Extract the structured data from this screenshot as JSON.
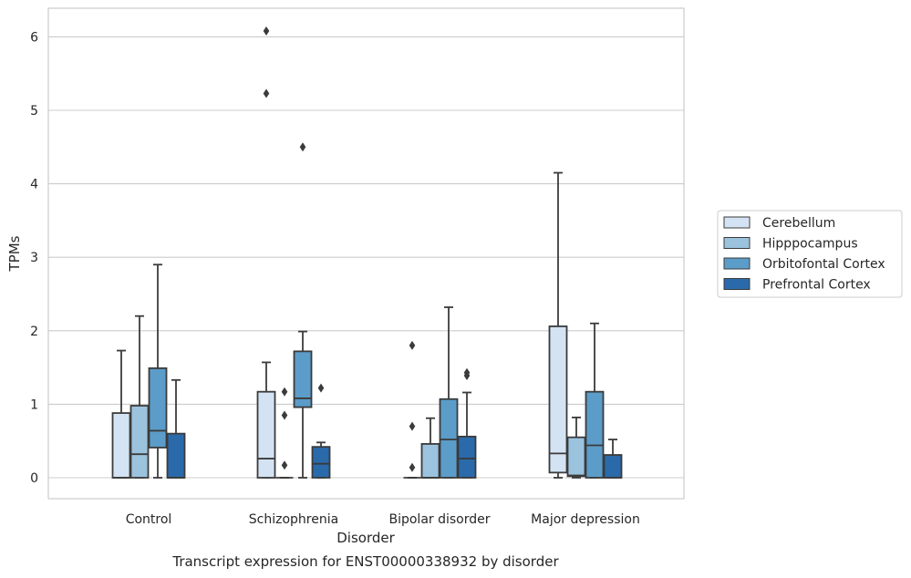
{
  "chart_data": {
    "type": "boxplot",
    "title": "",
    "caption": "Transcript expression for ENST00000338932 by disorder",
    "xlabel": "Disorder",
    "ylabel": "TPMs",
    "ylim": [
      -0.3,
      6.4
    ],
    "yticks": [
      0,
      1,
      2,
      3,
      4,
      5,
      6
    ],
    "grid": "horizontal",
    "legend_position": "right",
    "categories": [
      "Control",
      "Schizophrenia",
      "Bipolar disorder",
      "Major depression"
    ],
    "series": [
      {
        "name": "Cerebellum",
        "color": "#d4e3f3",
        "boxes": [
          {
            "whislo": 0,
            "q1": 0,
            "med": 0,
            "q3": 0.88,
            "whishi": 1.73,
            "fliers": []
          },
          {
            "whislo": 0,
            "q1": 0,
            "med": 0.26,
            "q3": 1.17,
            "whishi": 1.57,
            "fliers": [
              5.23,
              6.08
            ]
          },
          {
            "whislo": 0,
            "q1": 0,
            "med": 0,
            "q3": 0,
            "whishi": 0,
            "fliers": [
              0.14,
              0.7,
              1.8
            ]
          },
          {
            "whislo": 0,
            "q1": 0.07,
            "med": 0.33,
            "q3": 2.06,
            "whishi": 4.15,
            "fliers": []
          }
        ]
      },
      {
        "name": "Hipppocampus",
        "color": "#9cc3dd",
        "boxes": [
          {
            "whislo": 0,
            "q1": 0,
            "med": 0.32,
            "q3": 0.98,
            "whishi": 2.2,
            "fliers": []
          },
          {
            "whislo": 0,
            "q1": 0,
            "med": 0,
            "q3": 0,
            "whishi": 0,
            "fliers": [
              0.17,
              0.85,
              1.17
            ]
          },
          {
            "whislo": 0,
            "q1": 0,
            "med": 0,
            "q3": 0.46,
            "whishi": 0.81,
            "fliers": []
          },
          {
            "whislo": 0,
            "q1": 0.02,
            "med": 0.03,
            "q3": 0.55,
            "whishi": 0.82,
            "fliers": []
          }
        ]
      },
      {
        "name": "Orbitofontal Cortex",
        "color": "#5b9cc9",
        "boxes": [
          {
            "whislo": 0,
            "q1": 0.41,
            "med": 0.64,
            "q3": 1.49,
            "whishi": 2.9,
            "fliers": []
          },
          {
            "whislo": 0,
            "q1": 0.96,
            "med": 1.08,
            "q3": 1.72,
            "whishi": 1.99,
            "fliers": [
              4.5
            ]
          },
          {
            "whislo": 0,
            "q1": 0,
            "med": 0.52,
            "q3": 1.07,
            "whishi": 2.32,
            "fliers": []
          },
          {
            "whislo": 0,
            "q1": 0,
            "med": 0.44,
            "q3": 1.17,
            "whishi": 2.1,
            "fliers": []
          }
        ]
      },
      {
        "name": "Prefrontal Cortex",
        "color": "#2a6aab",
        "boxes": [
          {
            "whislo": 0,
            "q1": 0,
            "med": 0,
            "q3": 0.6,
            "whishi": 1.33,
            "fliers": []
          },
          {
            "whislo": 0,
            "q1": 0,
            "med": 0.19,
            "q3": 0.42,
            "whishi": 0.48,
            "fliers": [
              1.22
            ]
          },
          {
            "whislo": 0,
            "q1": 0,
            "med": 0.26,
            "q3": 0.56,
            "whishi": 1.16,
            "fliers": [
              1.39,
              1.43
            ]
          },
          {
            "whislo": 0,
            "q1": 0,
            "med": 0,
            "q3": 0.31,
            "whishi": 0.52,
            "fliers": []
          }
        ]
      }
    ]
  }
}
